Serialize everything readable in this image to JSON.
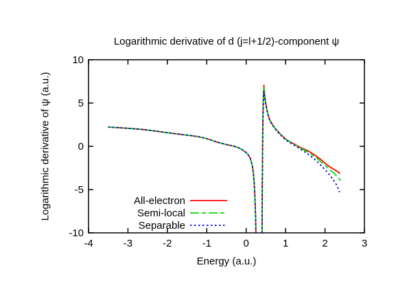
{
  "chart": {
    "title": "Logarithmic derivative of d (j=l+1/2)-component ψ",
    "xlabel": "Energy (a.u.)",
    "ylabel": "Logarithmic derivative of ψ (a.u.)"
  },
  "chart_data": {
    "type": "line",
    "title": "Logarithmic derivative of d (j=l+1/2)-component ψ",
    "xlabel": "Energy (a.u.)",
    "ylabel": "Logarithmic derivative of ψ (a.u.)",
    "xlim": [
      -4,
      3
    ],
    "ylim": [
      -10,
      10
    ],
    "x_ticks": [
      -4,
      -3,
      -2,
      -1,
      0,
      1,
      2,
      3
    ],
    "y_ticks": [
      -10,
      -5,
      0,
      5,
      10
    ],
    "grid": false,
    "legend_position": "inside-bottom-left",
    "frame_color": "#000000",
    "text_color": "#000000",
    "background": "#ffffff",
    "series": [
      {
        "name": "All-electron",
        "color": "#ff0000",
        "dash": "",
        "segments": [
          [
            [
              -3.5,
              2.22
            ],
            [
              -3.25,
              2.16
            ],
            [
              -3.0,
              2.08
            ],
            [
              -2.75,
              2.0
            ],
            [
              -2.5,
              1.88
            ],
            [
              -2.25,
              1.73
            ],
            [
              -2.0,
              1.57
            ],
            [
              -1.8,
              1.46
            ],
            [
              -1.6,
              1.34
            ],
            [
              -1.4,
              1.24
            ],
            [
              -1.2,
              1.1
            ],
            [
              -1.1,
              1.0
            ],
            [
              -1.0,
              0.88
            ],
            [
              -0.9,
              0.74
            ],
            [
              -0.8,
              0.58
            ],
            [
              -0.7,
              0.44
            ],
            [
              -0.6,
              0.32
            ],
            [
              -0.5,
              0.2
            ],
            [
              -0.4,
              0.1
            ],
            [
              -0.3,
              0.0
            ],
            [
              -0.2,
              -0.15
            ],
            [
              -0.1,
              -0.4
            ],
            [
              0.0,
              -0.72
            ],
            [
              0.05,
              -0.98
            ],
            [
              0.1,
              -1.35
            ],
            [
              0.15,
              -2.1
            ],
            [
              0.18,
              -3.0
            ],
            [
              0.2,
              -4.0
            ],
            [
              0.215,
              -5.2
            ],
            [
              0.23,
              -6.8
            ],
            [
              0.24,
              -8.5
            ],
            [
              0.247,
              -10.0
            ]
          ],
          [
            [
              0.402,
              -10.0
            ],
            [
              0.405,
              -7.5
            ],
            [
              0.408,
              -5.0
            ],
            [
              0.412,
              -2.5
            ],
            [
              0.417,
              0.5
            ],
            [
              0.423,
              3.0
            ],
            [
              0.43,
              4.8
            ],
            [
              0.44,
              6.2
            ],
            [
              0.45,
              7.05
            ],
            [
              0.46,
              6.4
            ],
            [
              0.48,
              5.5
            ],
            [
              0.5,
              4.9
            ],
            [
              0.53,
              4.15
            ],
            [
              0.56,
              3.6
            ],
            [
              0.6,
              3.05
            ],
            [
              0.65,
              2.65
            ],
            [
              0.7,
              2.3
            ],
            [
              0.75,
              2.0
            ],
            [
              0.8,
              1.75
            ],
            [
              0.85,
              1.5
            ],
            [
              0.9,
              1.28
            ],
            [
              0.95,
              1.05
            ],
            [
              1.0,
              0.85
            ],
            [
              1.1,
              0.55
            ],
            [
              1.2,
              0.3
            ],
            [
              1.3,
              0.05
            ],
            [
              1.4,
              -0.18
            ],
            [
              1.5,
              -0.38
            ],
            [
              1.6,
              -0.6
            ],
            [
              1.7,
              -0.9
            ],
            [
              1.8,
              -1.2
            ],
            [
              1.9,
              -1.55
            ],
            [
              2.0,
              -1.95
            ],
            [
              2.1,
              -2.3
            ],
            [
              2.2,
              -2.6
            ],
            [
              2.3,
              -2.85
            ],
            [
              2.38,
              -3.15
            ]
          ]
        ]
      },
      {
        "name": "Semi-local",
        "color": "#00dd00",
        "dash": "13,4,6,4",
        "segments": [
          [
            [
              -3.5,
              2.22
            ],
            [
              -3.25,
              2.16
            ],
            [
              -3.0,
              2.08
            ],
            [
              -2.75,
              2.0
            ],
            [
              -2.5,
              1.88
            ],
            [
              -2.25,
              1.73
            ],
            [
              -2.0,
              1.57
            ],
            [
              -1.8,
              1.46
            ],
            [
              -1.6,
              1.34
            ],
            [
              -1.4,
              1.24
            ],
            [
              -1.2,
              1.1
            ],
            [
              -1.1,
              1.0
            ],
            [
              -1.0,
              0.88
            ],
            [
              -0.9,
              0.74
            ],
            [
              -0.8,
              0.58
            ],
            [
              -0.7,
              0.44
            ],
            [
              -0.6,
              0.32
            ],
            [
              -0.5,
              0.2
            ],
            [
              -0.4,
              0.1
            ],
            [
              -0.3,
              0.0
            ],
            [
              -0.2,
              -0.15
            ],
            [
              -0.1,
              -0.4
            ],
            [
              0.0,
              -0.72
            ],
            [
              0.05,
              -0.98
            ],
            [
              0.1,
              -1.35
            ],
            [
              0.15,
              -2.1
            ],
            [
              0.18,
              -3.0
            ],
            [
              0.2,
              -4.0
            ],
            [
              0.215,
              -5.2
            ],
            [
              0.23,
              -6.8
            ],
            [
              0.24,
              -8.5
            ],
            [
              0.247,
              -10.0
            ]
          ],
          [
            [
              0.402,
              -10.0
            ],
            [
              0.406,
              -7.0
            ],
            [
              0.41,
              -4.0
            ],
            [
              0.415,
              -1.0
            ],
            [
              0.42,
              1.8
            ],
            [
              0.43,
              4.4
            ],
            [
              0.44,
              6.0
            ],
            [
              0.45,
              6.9
            ],
            [
              0.47,
              5.9
            ],
            [
              0.5,
              4.85
            ],
            [
              0.53,
              4.1
            ],
            [
              0.56,
              3.55
            ],
            [
              0.6,
              3.0
            ],
            [
              0.65,
              2.6
            ],
            [
              0.7,
              2.28
            ],
            [
              0.75,
              1.98
            ],
            [
              0.8,
              1.72
            ],
            [
              0.85,
              1.48
            ],
            [
              0.9,
              1.25
            ],
            [
              0.95,
              1.02
            ],
            [
              1.0,
              0.82
            ],
            [
              1.1,
              0.52
            ],
            [
              1.2,
              0.26
            ],
            [
              1.3,
              0.0
            ],
            [
              1.4,
              -0.25
            ],
            [
              1.5,
              -0.5
            ],
            [
              1.6,
              -0.75
            ],
            [
              1.7,
              -1.05
            ],
            [
              1.8,
              -1.4
            ],
            [
              1.9,
              -1.8
            ],
            [
              2.0,
              -2.2
            ],
            [
              2.1,
              -2.6
            ],
            [
              2.2,
              -3.0
            ],
            [
              2.3,
              -3.45
            ],
            [
              2.4,
              -3.95
            ]
          ]
        ]
      },
      {
        "name": "Separable",
        "color": "#0000dd",
        "dash": "2.5,3.5",
        "segments": [
          [
            [
              -3.5,
              2.22
            ],
            [
              -3.25,
              2.16
            ],
            [
              -3.0,
              2.08
            ],
            [
              -2.75,
              2.0
            ],
            [
              -2.5,
              1.88
            ],
            [
              -2.25,
              1.73
            ],
            [
              -2.0,
              1.57
            ],
            [
              -1.8,
              1.46
            ],
            [
              -1.6,
              1.34
            ],
            [
              -1.4,
              1.24
            ],
            [
              -1.2,
              1.1
            ],
            [
              -1.1,
              1.0
            ],
            [
              -1.0,
              0.88
            ],
            [
              -0.9,
              0.74
            ],
            [
              -0.8,
              0.58
            ],
            [
              -0.7,
              0.44
            ],
            [
              -0.6,
              0.32
            ],
            [
              -0.5,
              0.2
            ],
            [
              -0.4,
              0.1
            ],
            [
              -0.3,
              0.0
            ],
            [
              -0.2,
              -0.15
            ],
            [
              -0.1,
              -0.4
            ],
            [
              0.0,
              -0.72
            ],
            [
              0.05,
              -0.98
            ],
            [
              0.1,
              -1.35
            ],
            [
              0.15,
              -2.1
            ],
            [
              0.18,
              -3.0
            ],
            [
              0.2,
              -4.0
            ],
            [
              0.215,
              -5.2
            ],
            [
              0.23,
              -6.8
            ],
            [
              0.24,
              -8.5
            ],
            [
              0.247,
              -10.0
            ]
          ],
          [
            [
              0.403,
              -10.0
            ],
            [
              0.407,
              -7.0
            ],
            [
              0.411,
              -4.0
            ],
            [
              0.416,
              -1.0
            ],
            [
              0.422,
              1.6
            ],
            [
              0.432,
              4.2
            ],
            [
              0.442,
              5.8
            ],
            [
              0.452,
              6.35
            ],
            [
              0.47,
              5.7
            ],
            [
              0.5,
              4.75
            ],
            [
              0.53,
              4.05
            ],
            [
              0.56,
              3.5
            ],
            [
              0.6,
              2.95
            ],
            [
              0.65,
              2.55
            ],
            [
              0.7,
              2.22
            ],
            [
              0.75,
              1.92
            ],
            [
              0.8,
              1.66
            ],
            [
              0.85,
              1.42
            ],
            [
              0.9,
              1.18
            ],
            [
              0.95,
              0.96
            ],
            [
              1.0,
              0.75
            ],
            [
              1.1,
              0.45
            ],
            [
              1.2,
              0.18
            ],
            [
              1.3,
              -0.1
            ],
            [
              1.4,
              -0.4
            ],
            [
              1.5,
              -0.7
            ],
            [
              1.6,
              -1.0
            ],
            [
              1.7,
              -1.35
            ],
            [
              1.8,
              -1.75
            ],
            [
              1.9,
              -2.2
            ],
            [
              2.0,
              -2.7
            ],
            [
              2.1,
              -3.2
            ],
            [
              2.2,
              -3.8
            ],
            [
              2.3,
              -4.5
            ],
            [
              2.37,
              -5.3
            ]
          ]
        ]
      }
    ]
  }
}
